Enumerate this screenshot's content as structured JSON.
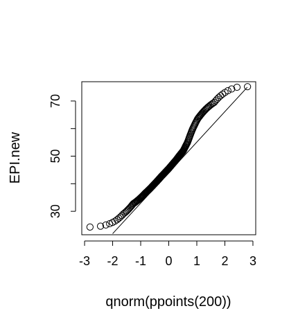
{
  "chart_data": {
    "type": "scatter",
    "subtype": "qq-plot",
    "title": "",
    "xlabel": "qnorm(ppoints(200))",
    "ylabel": "EPI.new",
    "xlim": [
      -3.1,
      3.1
    ],
    "ylim": [
      21.5,
      77
    ],
    "x_ticks": [
      -3,
      -2,
      -1,
      0,
      1,
      2,
      3
    ],
    "y_ticks": [
      30,
      40,
      50,
      60,
      70
    ],
    "y_tick_labels": [
      {
        "value": 30,
        "label": "30"
      },
      {
        "value": 50,
        "label": "50"
      },
      {
        "value": 70,
        "label": "70"
      }
    ],
    "grid": false,
    "legend": "none",
    "point_style": "open-circle",
    "n_points": 200,
    "sample_quantiles_anchor": {
      "p": [
        0.0,
        0.005,
        0.025,
        0.05,
        0.1,
        0.2,
        0.3,
        0.4,
        0.5,
        0.6,
        0.7,
        0.75,
        0.8,
        0.85,
        0.9,
        0.95,
        0.975,
        0.995,
        1.0
      ],
      "y": [
        24.3,
        24.6,
        26.4,
        29.0,
        32.7,
        36.6,
        39.8,
        42.8,
        45.5,
        48.5,
        52.0,
        55.0,
        59.5,
        63.5,
        66.5,
        69.5,
        72.5,
        75.0,
        75.2
      ]
    },
    "reference_line": {
      "points": [
        {
          "x": -2.0,
          "y": 21.9
        },
        {
          "x": 2.8,
          "y": 75.0
        }
      ]
    },
    "colors": {
      "points": "#000000",
      "line": "#000000",
      "axes": "#000000"
    }
  }
}
